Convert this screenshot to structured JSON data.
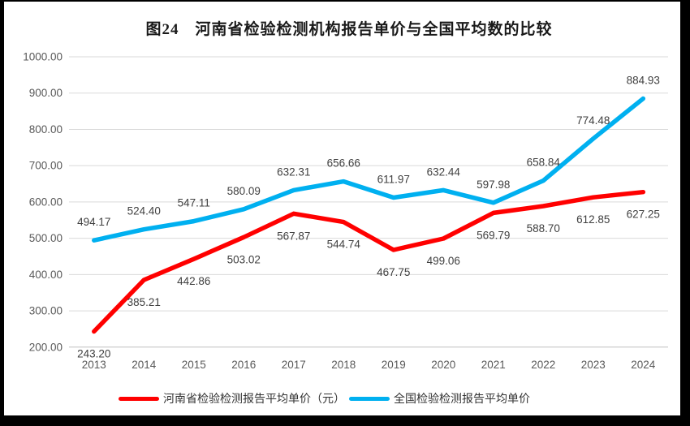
{
  "title": "图24　河南省检验检测机构报告单价与全国平均数的比较",
  "chart_data": {
    "type": "line",
    "title": "图24　河南省检验检测机构报告单价与全国平均数的比较",
    "categories": [
      "2013",
      "2014",
      "2015",
      "2016",
      "2017",
      "2018",
      "2019",
      "2020",
      "2021",
      "2022",
      "2023",
      "2024"
    ],
    "series": [
      {
        "name": "河南省检验检测报告平均单价（元）",
        "color": "#FF0000",
        "label_position": "below",
        "values": [
          243.2,
          385.21,
          442.86,
          503.02,
          567.87,
          544.74,
          467.75,
          499.06,
          569.79,
          588.7,
          612.85,
          627.25
        ]
      },
      {
        "name": "全国检验检测报告平均单价",
        "color": "#00B0F0",
        "label_position": "above",
        "values": [
          494.17,
          524.4,
          547.11,
          580.09,
          632.31,
          656.66,
          611.97,
          632.44,
          597.98,
          658.84,
          774.48,
          884.93
        ]
      }
    ],
    "ylim": [
      200,
      1000
    ],
    "ytick_step": 100,
    "ytick_format_decimals": 2,
    "value_format_decimals": 2,
    "grid": true,
    "legend_position": "bottom",
    "xlabel": "",
    "ylabel": ""
  },
  "colors": {
    "gridline": "#D9D9D9",
    "axis_line": "#BFBFBF",
    "tick_text": "#595959",
    "data_label_text": "#404040",
    "title_text": "#1a1a1a",
    "frame": "#000000",
    "background": "#FFFFFF"
  }
}
